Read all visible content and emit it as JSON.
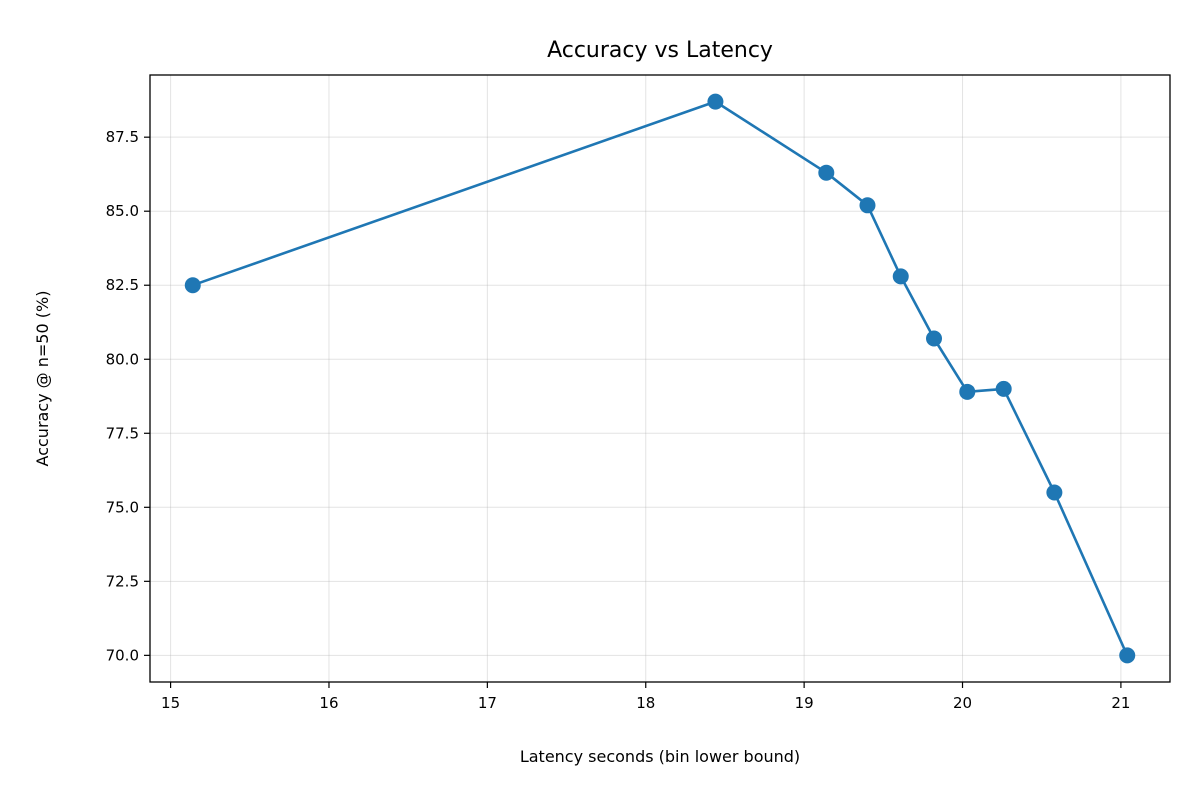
{
  "chart_data": {
    "type": "line",
    "title": "Accuracy vs Latency",
    "xlabel": "Latency seconds (bin lower bound)",
    "ylabel": "Accuracy @ n=50 (%)",
    "xlim": [
      14.87,
      21.31
    ],
    "ylim": [
      69.1,
      89.6
    ],
    "xticks": [
      15,
      16,
      17,
      18,
      19,
      20,
      21
    ],
    "xtick_labels": [
      "15",
      "16",
      "17",
      "18",
      "19",
      "20",
      "21"
    ],
    "yticks": [
      70.0,
      72.5,
      75.0,
      77.5,
      80.0,
      82.5,
      85.0,
      87.5
    ],
    "ytick_labels": [
      "70.0",
      "72.5",
      "75.0",
      "77.5",
      "80.0",
      "82.5",
      "85.0",
      "87.5"
    ],
    "grid": true,
    "legend": "none",
    "series": [
      {
        "color": "#1f77b4",
        "marker": "circle",
        "x": [
          15.14,
          18.44,
          19.14,
          19.4,
          19.61,
          19.82,
          20.03,
          20.26,
          20.58,
          21.04
        ],
        "y": [
          82.5,
          88.7,
          86.3,
          85.2,
          82.8,
          80.7,
          78.9,
          79.0,
          75.5,
          70.0
        ]
      }
    ]
  }
}
